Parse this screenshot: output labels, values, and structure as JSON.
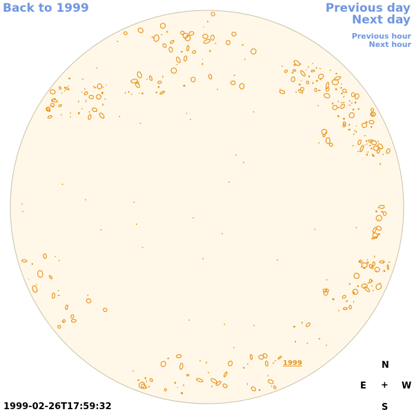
{
  "nav": {
    "back_label": "Back to 1999",
    "prev_day_label": "Previous day",
    "next_day_label": "Next day",
    "prev_hour_label": "Previous hour",
    "next_hour_label": "Next hour"
  },
  "observation": {
    "timestamp": "1999-02-26T17:59:32",
    "year_link": "1999"
  },
  "compass": {
    "north": "N",
    "east": "E",
    "center": "+",
    "west": "W",
    "south": "S"
  },
  "colors": {
    "link": "#6f97df",
    "disk_fill": "#fff8e8",
    "disk_border": "#c8bfa8",
    "feature": "#e8921c"
  }
}
